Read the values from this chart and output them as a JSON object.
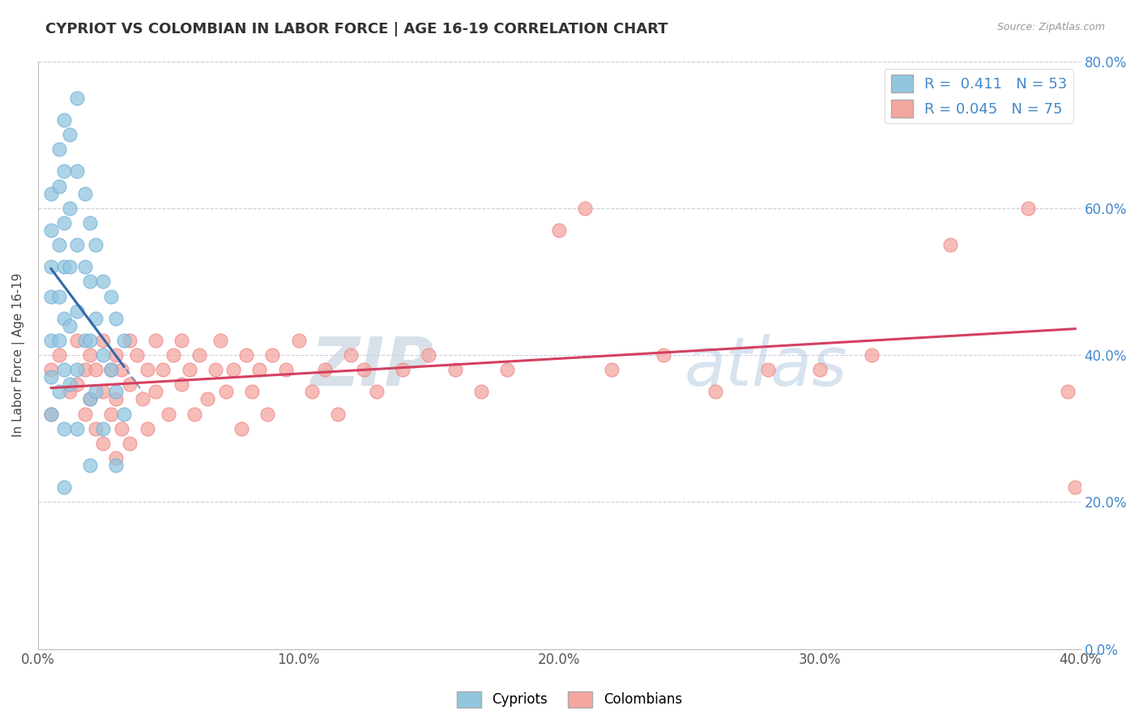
{
  "title": "CYPRIOT VS COLOMBIAN IN LABOR FORCE | AGE 16-19 CORRELATION CHART",
  "source_text": "Source: ZipAtlas.com",
  "ylabel": "In Labor Force | Age 16-19",
  "xlim": [
    0.0,
    0.4
  ],
  "ylim": [
    0.0,
    0.8
  ],
  "xticks": [
    0.0,
    0.1,
    0.2,
    0.3,
    0.4
  ],
  "yticks": [
    0.0,
    0.2,
    0.4,
    0.6,
    0.8
  ],
  "xtick_labels": [
    "0.0%",
    "10.0%",
    "20.0%",
    "30.0%",
    "40.0%"
  ],
  "ytick_labels": [
    "0.0%",
    "20.0%",
    "40.0%",
    "60.0%",
    "80.0%"
  ],
  "cypriot_color": "#92c5de",
  "colombian_color": "#f4a6a0",
  "cypriot_edge_color": "#6baed6",
  "colombian_edge_color": "#f08080",
  "cypriot_line_color": "#3469aa",
  "colombian_line_color": "#d44060",
  "cypriot_R": 0.411,
  "cypriot_N": 53,
  "colombian_R": 0.045,
  "colombian_N": 75,
  "watermark_color": "#cdd9e8",
  "cypriot_x": [
    0.005,
    0.005,
    0.005,
    0.005,
    0.005,
    0.005,
    0.005,
    0.008,
    0.008,
    0.008,
    0.008,
    0.008,
    0.008,
    0.01,
    0.01,
    0.01,
    0.01,
    0.01,
    0.01,
    0.01,
    0.01,
    0.012,
    0.012,
    0.012,
    0.012,
    0.012,
    0.015,
    0.015,
    0.015,
    0.015,
    0.015,
    0.015,
    0.018,
    0.018,
    0.018,
    0.02,
    0.02,
    0.02,
    0.02,
    0.02,
    0.022,
    0.022,
    0.022,
    0.025,
    0.025,
    0.025,
    0.028,
    0.028,
    0.03,
    0.03,
    0.03,
    0.033,
    0.033
  ],
  "cypriot_y": [
    0.62,
    0.57,
    0.52,
    0.48,
    0.42,
    0.37,
    0.32,
    0.68,
    0.63,
    0.55,
    0.48,
    0.42,
    0.35,
    0.72,
    0.65,
    0.58,
    0.52,
    0.45,
    0.38,
    0.3,
    0.22,
    0.7,
    0.6,
    0.52,
    0.44,
    0.36,
    0.75,
    0.65,
    0.55,
    0.46,
    0.38,
    0.3,
    0.62,
    0.52,
    0.42,
    0.58,
    0.5,
    0.42,
    0.34,
    0.25,
    0.55,
    0.45,
    0.35,
    0.5,
    0.4,
    0.3,
    0.48,
    0.38,
    0.45,
    0.35,
    0.25,
    0.42,
    0.32
  ],
  "colombian_x": [
    0.005,
    0.005,
    0.008,
    0.012,
    0.015,
    0.015,
    0.018,
    0.018,
    0.02,
    0.02,
    0.022,
    0.022,
    0.025,
    0.025,
    0.025,
    0.028,
    0.028,
    0.03,
    0.03,
    0.03,
    0.032,
    0.032,
    0.035,
    0.035,
    0.035,
    0.038,
    0.04,
    0.042,
    0.042,
    0.045,
    0.045,
    0.048,
    0.05,
    0.052,
    0.055,
    0.055,
    0.058,
    0.06,
    0.062,
    0.065,
    0.068,
    0.07,
    0.072,
    0.075,
    0.078,
    0.08,
    0.082,
    0.085,
    0.088,
    0.09,
    0.095,
    0.1,
    0.105,
    0.11,
    0.115,
    0.12,
    0.125,
    0.13,
    0.14,
    0.15,
    0.16,
    0.17,
    0.18,
    0.2,
    0.21,
    0.22,
    0.24,
    0.26,
    0.28,
    0.3,
    0.32,
    0.35,
    0.38,
    0.395,
    0.398
  ],
  "colombian_y": [
    0.38,
    0.32,
    0.4,
    0.35,
    0.42,
    0.36,
    0.38,
    0.32,
    0.4,
    0.34,
    0.38,
    0.3,
    0.42,
    0.35,
    0.28,
    0.38,
    0.32,
    0.4,
    0.34,
    0.26,
    0.38,
    0.3,
    0.42,
    0.36,
    0.28,
    0.4,
    0.34,
    0.38,
    0.3,
    0.42,
    0.35,
    0.38,
    0.32,
    0.4,
    0.42,
    0.36,
    0.38,
    0.32,
    0.4,
    0.34,
    0.38,
    0.42,
    0.35,
    0.38,
    0.3,
    0.4,
    0.35,
    0.38,
    0.32,
    0.4,
    0.38,
    0.42,
    0.35,
    0.38,
    0.32,
    0.4,
    0.38,
    0.35,
    0.38,
    0.4,
    0.38,
    0.35,
    0.38,
    0.57,
    0.6,
    0.38,
    0.4,
    0.35,
    0.38,
    0.38,
    0.4,
    0.55,
    0.6,
    0.35,
    0.22
  ]
}
